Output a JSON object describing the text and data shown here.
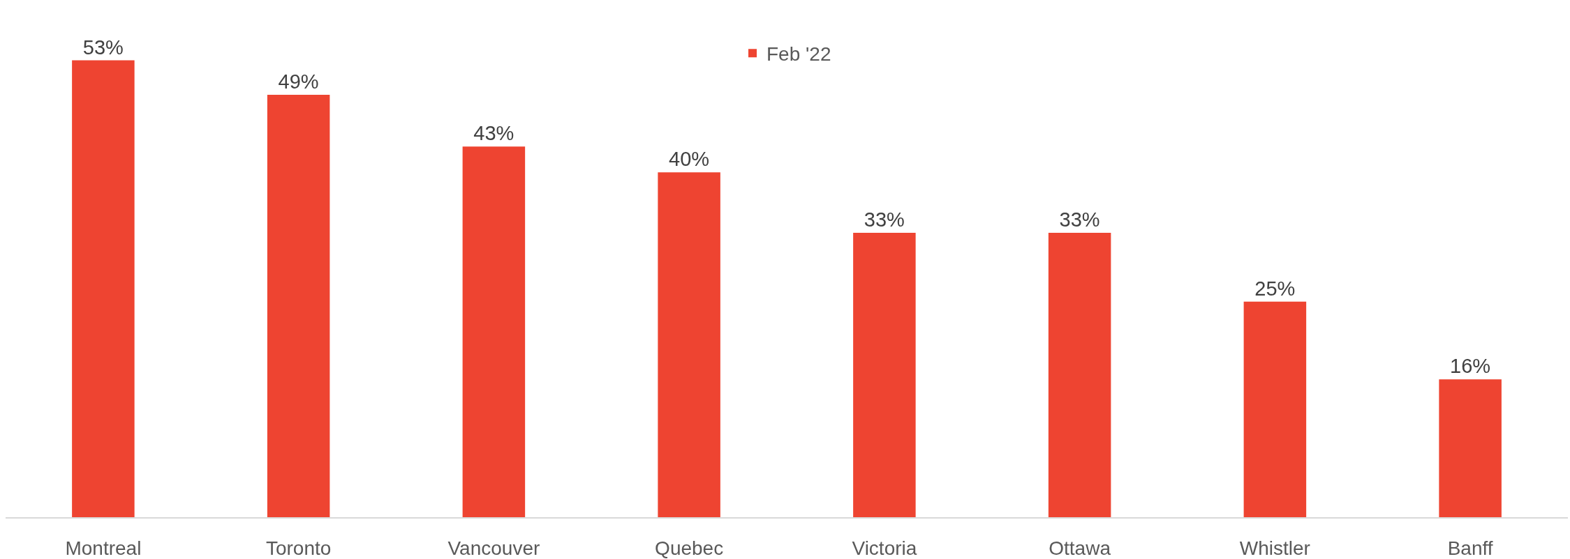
{
  "chart_data": {
    "type": "bar",
    "categories": [
      "Montreal",
      "Toronto",
      "Vancouver",
      "Quebec",
      "Victoria",
      "Ottawa",
      "Whistler",
      "Banff"
    ],
    "series": [
      {
        "name": "Feb '22",
        "color": "#ee4431",
        "values": [
          53,
          49,
          43,
          40,
          33,
          33,
          25,
          16
        ],
        "value_labels": [
          "53%",
          "49%",
          "43%",
          "40%",
          "33%",
          "33%",
          "25%",
          "16%"
        ]
      }
    ],
    "ylim": [
      0,
      60
    ],
    "tick_labels": "x",
    "legend": "top"
  }
}
